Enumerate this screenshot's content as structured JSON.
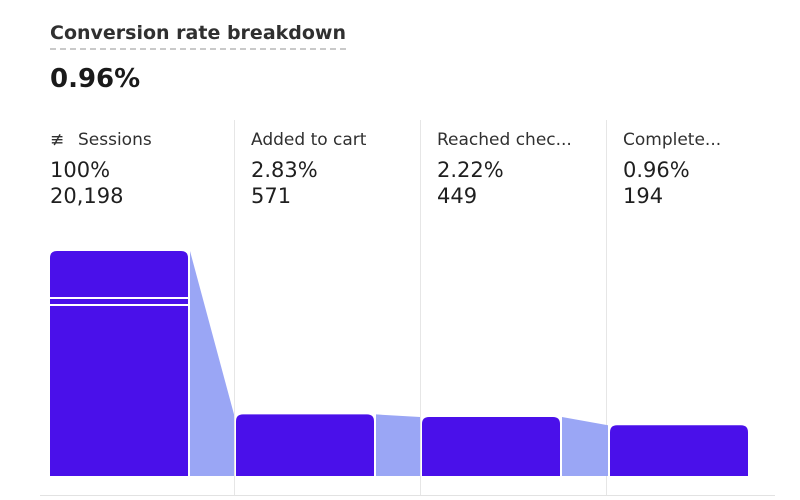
{
  "card": {
    "title": "Conversion rate breakdown",
    "headline": "0.96%"
  },
  "chart_data": {
    "type": "bar",
    "title": "Conversion rate breakdown",
    "categories": [
      "Sessions",
      "Added to cart",
      "Reached chec...",
      "Complete..."
    ],
    "percent_labels": [
      "100%",
      "2.83%",
      "2.22%",
      "0.96%"
    ],
    "count_labels": [
      "20,198",
      "571",
      "449",
      "194"
    ],
    "values": [
      20198,
      571,
      449,
      194
    ],
    "colors": {
      "bar": "#4a10ea",
      "connector": "#9aa6f5",
      "divider": "#e6e6e6"
    },
    "sessions_icon": "sessions-icon"
  }
}
